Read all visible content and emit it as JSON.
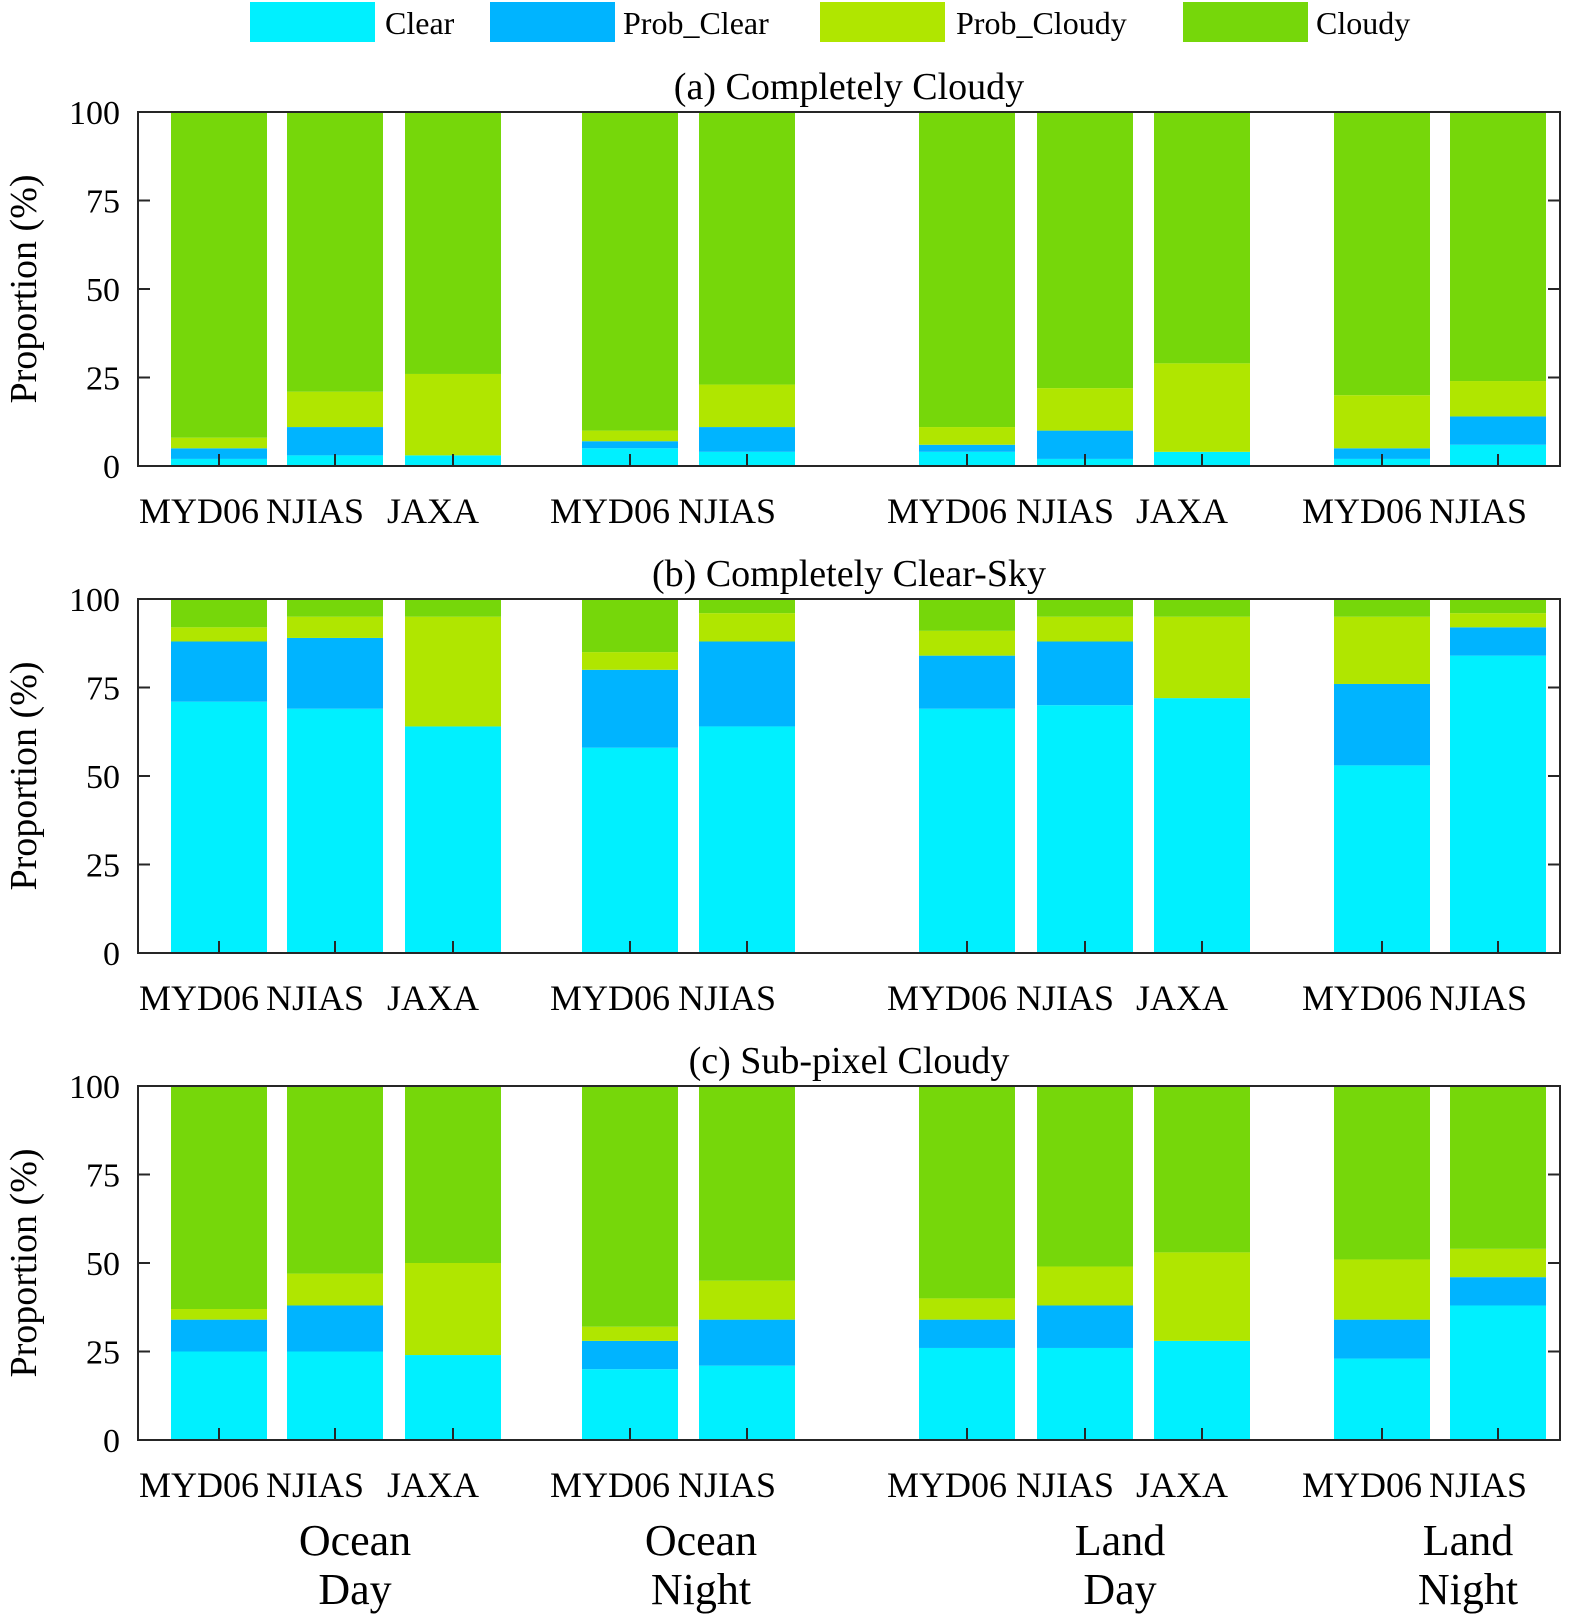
{
  "chart_data": {
    "type": "stacked-bar",
    "legend": {
      "placement": "top",
      "items": [
        {
          "name": "Clear",
          "color": "#00F0FF"
        },
        {
          "name": "Prob_Clear",
          "color": "#00B4FF"
        },
        {
          "name": "Prob_Cloudy",
          "color": "#B0E600"
        },
        {
          "name": "Cloudy",
          "color": "#76D70A"
        }
      ]
    },
    "ylabel": "Proportion (%)",
    "ylim": [
      0,
      100
    ],
    "yticks": [
      "0",
      "25",
      "50",
      "75",
      "100"
    ],
    "grid": false,
    "categories": [
      "MYD06",
      "NJIAS",
      "JAXA",
      "MYD06",
      "NJIAS",
      "MYD06",
      "NJIAS",
      "JAXA",
      "MYD06",
      "NJIAS"
    ],
    "groups": [
      {
        "line1": "Ocean",
        "line2": "Day",
        "members": [
          0,
          1,
          2
        ]
      },
      {
        "line1": "Ocean",
        "line2": "Night",
        "members": [
          3,
          4
        ]
      },
      {
        "line1": "Land",
        "line2": "Day",
        "members": [
          5,
          6,
          7
        ]
      },
      {
        "line1": "Land",
        "line2": "Night",
        "members": [
          8,
          9
        ]
      }
    ],
    "panels": [
      {
        "title": "(a) Completely Cloudy",
        "series": [
          {
            "name": "Clear",
            "values": [
              2,
              3,
              3,
              5,
              4,
              4,
              2,
              4,
              2,
              6
            ]
          },
          {
            "name": "Prob_Clear",
            "values": [
              3,
              8,
              0,
              2,
              7,
              2,
              8,
              0,
              3,
              8
            ]
          },
          {
            "name": "Prob_Cloudy",
            "values": [
              3,
              10,
              23,
              3,
              12,
              5,
              12,
              25,
              15,
              10
            ]
          },
          {
            "name": "Cloudy",
            "values": [
              92,
              79,
              74,
              90,
              77,
              89,
              78,
              71,
              80,
              76
            ]
          }
        ]
      },
      {
        "title": "(b) Completely Clear-Sky",
        "series": [
          {
            "name": "Clear",
            "values": [
              71,
              69,
              64,
              58,
              64,
              69,
              70,
              72,
              53,
              84
            ]
          },
          {
            "name": "Prob_Clear",
            "values": [
              17,
              20,
              0,
              22,
              24,
              15,
              18,
              0,
              23,
              8
            ]
          },
          {
            "name": "Prob_Cloudy",
            "values": [
              4,
              6,
              31,
              5,
              8,
              7,
              7,
              23,
              19,
              4
            ]
          },
          {
            "name": "Cloudy",
            "values": [
              8,
              5,
              5,
              15,
              4,
              9,
              5,
              5,
              5,
              4
            ]
          }
        ]
      },
      {
        "title": "(c) Sub-pixel Cloudy",
        "series": [
          {
            "name": "Clear",
            "values": [
              25,
              25,
              24,
              20,
              21,
              26,
              26,
              28,
              23,
              38
            ]
          },
          {
            "name": "Prob_Clear",
            "values": [
              9,
              13,
              0,
              8,
              13,
              8,
              12,
              0,
              11,
              8
            ]
          },
          {
            "name": "Prob_Cloudy",
            "values": [
              3,
              9,
              26,
              4,
              11,
              6,
              11,
              25,
              17,
              8
            ]
          },
          {
            "name": "Cloudy",
            "values": [
              63,
              53,
              50,
              68,
              55,
              60,
              51,
              47,
              49,
              46
            ]
          }
        ]
      }
    ]
  }
}
